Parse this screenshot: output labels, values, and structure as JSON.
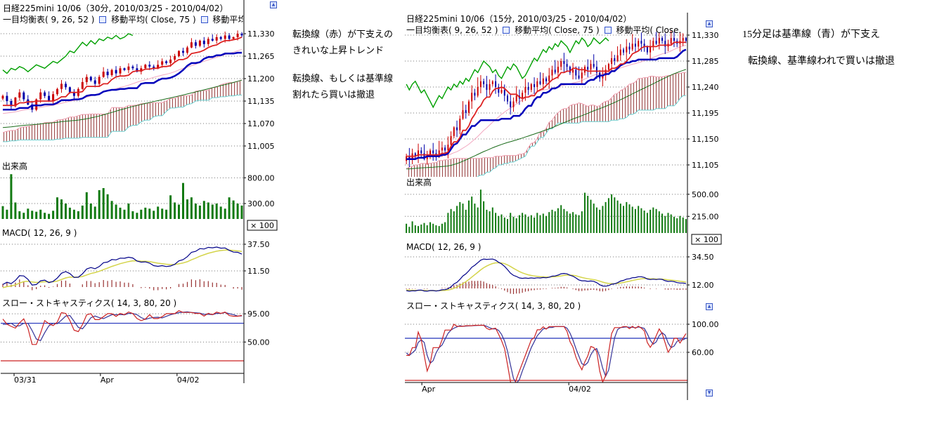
{
  "annotations": {
    "left": {
      "para1": [
        "転換線（赤）が下支えの",
        "きれいな上昇トレンド"
      ],
      "para2": [
        "転換線、もしくは基準線",
        "割れたら買いは撤退"
      ]
    },
    "right": {
      "lines": [
        "15分足は基準線（青）が下支え",
        "転換線、基準線われで買いは撤退"
      ]
    }
  },
  "colors": {
    "up": "#cc0000",
    "down": "#0000aa",
    "tenkan": "#dd2222",
    "kijun": "#0000bb",
    "lagging": "#00a000",
    "span_a": "#ee99aa",
    "span_b": "#66cccc",
    "cloud_hatch": "#994444",
    "ma_fast": "#f2a8c0",
    "ma_slow": "#1a6b1a",
    "volume": "#127a12",
    "macd": "#000088",
    "signal": "#d4d44a",
    "hist": "#993333",
    "stoch_k": "#cc2222",
    "stoch_d": "#333399",
    "ref_high": "#2233bb",
    "ref_low": "#cc2222",
    "grid": "#777777",
    "axis": "#000000",
    "icon_blue": "#3355cc"
  },
  "chart_data": [
    {
      "type": "candlestick",
      "panels": [
        "price+ichimoku+moving-averages",
        "volume",
        "macd",
        "slow-stochastics"
      ],
      "title": "日経225mini 10/06（30分, 2010/03/25 - 2010/04/02）",
      "indicators": [
        "一目均衡表( 9, 26, 52 )",
        "移動平均( Close, 75 )",
        "移動平均( Close,"
      ],
      "volume_label": "出来高",
      "volume_multiplier": "× 100",
      "macd_label": "MACD( 12, 26, 9 )",
      "stoch_label": "スロー・ストキャスティクス( 14, 3, 80, 20 )",
      "price_axis": [
        {
          "v": 11330,
          "label": "11,330"
        },
        {
          "v": 11265,
          "label": "11,265"
        },
        {
          "v": 11200,
          "label": "11,200"
        },
        {
          "v": 11135,
          "label": "11,135"
        },
        {
          "v": 11070,
          "label": "11,070"
        },
        {
          "v": 11005,
          "label": "11,005"
        }
      ],
      "vol_axis": [
        {
          "v": 800,
          "label": "800.00"
        },
        {
          "v": 300,
          "label": "300.00"
        }
      ],
      "macd_axis": [
        "37.50",
        "11.50"
      ],
      "stoch_axis": [
        {
          "v": 95,
          "label": "95.00"
        },
        {
          "v": 50,
          "label": "50.00"
        }
      ],
      "stoch_refs": {
        "high": 80,
        "low": 20
      },
      "x_labels": [
        {
          "label": "03/31",
          "pos": 0.055
        },
        {
          "label": "Apr",
          "pos": 0.41
        },
        {
          "label": "04/02",
          "pos": 0.725
        }
      ],
      "wick": 12,
      "closes": [
        11150,
        11135,
        11120,
        11145,
        11160,
        11140,
        11125,
        11110,
        11140,
        11160,
        11150,
        11135,
        11155,
        11170,
        11185,
        11175,
        11160,
        11150,
        11170,
        11190,
        11205,
        11195,
        11185,
        11205,
        11220,
        11210,
        11225,
        11215,
        11230,
        11225,
        11235,
        11230,
        11220,
        11230,
        11240,
        11235,
        11230,
        11240,
        11250,
        11245,
        11255,
        11265,
        11280,
        11275,
        11290,
        11305,
        11295,
        11310,
        11300,
        11315,
        11310,
        11320,
        11315,
        11325,
        11315,
        11320,
        11330,
        11325
      ],
      "pre_closes": [
        11060,
        11040,
        11020,
        11000,
        10980,
        10960,
        10950,
        10960,
        10945,
        10960,
        10980,
        10970,
        10990,
        11010,
        11000,
        11020,
        11035,
        11025,
        11040,
        11055,
        11045,
        11060,
        11050,
        11065,
        11075,
        11065,
        11080,
        11070,
        11085,
        11075,
        11090,
        11080,
        11095,
        11085,
        11100,
        11090,
        11080,
        11070,
        11085,
        11095,
        11085,
        11100,
        11090,
        11105,
        11095,
        11110,
        11100,
        11090,
        11105,
        11115,
        11105,
        11095,
        11110,
        11100,
        11115,
        11105
      ],
      "volumes": [
        250,
        180,
        870,
        320,
        150,
        120,
        200,
        160,
        140,
        180,
        120,
        100,
        160,
        420,
        380,
        300,
        220,
        180,
        150,
        260,
        520,
        300,
        240,
        560,
        600,
        480,
        350,
        280,
        220,
        180,
        300,
        150,
        120,
        180,
        220,
        200,
        160,
        240,
        200,
        180,
        460,
        320,
        280,
        700,
        380,
        420,
        300,
        260,
        350,
        320,
        280,
        300,
        240,
        200,
        420,
        360,
        300,
        260
      ]
    },
    {
      "type": "candlestick",
      "panels": [
        "price+ichimoku+moving-averages",
        "volume",
        "macd",
        "slow-stochastics"
      ],
      "title": "日経225mini 10/06（15分, 2010/03/25 - 2010/04/02）",
      "indicators": [
        "一目均衡表( 9, 26, 52 )",
        "移動平均( Close, 75 )",
        "移動平均( Close."
      ],
      "volume_label": "出来高",
      "volume_multiplier": "× 100",
      "macd_label": "MACD( 12, 26, 9 )",
      "stoch_label": "スロー・ストキャスティクス( 14, 3, 80, 20 )",
      "price_axis": [
        {
          "v": 11330,
          "label": "11,330"
        },
        {
          "v": 11285,
          "label": "11,285"
        },
        {
          "v": 11240,
          "label": "11,240"
        },
        {
          "v": 11195,
          "label": "11,195"
        },
        {
          "v": 11150,
          "label": "11,150"
        },
        {
          "v": 11105,
          "label": "11,105"
        }
      ],
      "vol_axis": [
        {
          "v": 500,
          "label": "500.00"
        },
        {
          "v": 215,
          "label": "215.00"
        }
      ],
      "macd_axis": [
        "34.50",
        "12.00"
      ],
      "stoch_axis": [
        {
          "v": 100,
          "label": "100.00"
        },
        {
          "v": 60,
          "label": "60.00"
        }
      ],
      "stoch_refs": {
        "high": 80,
        "low": 20
      },
      "x_labels": [
        {
          "label": "Apr",
          "pos": 0.06
        },
        {
          "label": "04/02",
          "pos": 0.58
        }
      ],
      "wick": 16,
      "closes": [
        11120,
        11115,
        11125,
        11120,
        11130,
        11125,
        11115,
        11120,
        11130,
        11125,
        11120,
        11130,
        11135,
        11130,
        11140,
        11155,
        11170,
        11165,
        11185,
        11200,
        11195,
        11215,
        11230,
        11225,
        11240,
        11250,
        11245,
        11235,
        11245,
        11250,
        11240,
        11230,
        11235,
        11225,
        11215,
        11205,
        11215,
        11225,
        11220,
        11230,
        11240,
        11235,
        11245,
        11240,
        11250,
        11245,
        11255,
        11250,
        11260,
        11270,
        11265,
        11275,
        11285,
        11280,
        11275,
        11265,
        11270,
        11260,
        11255,
        11265,
        11275,
        11270,
        11280,
        11275,
        11265,
        11255,
        11260,
        11270,
        11280,
        11290,
        11285,
        11295,
        11305,
        11300,
        11310,
        11305,
        11315,
        11310,
        11320,
        11315,
        11310,
        11300,
        11310,
        11320,
        11315,
        11325,
        11320,
        11310,
        11315,
        11325,
        11320,
        11315,
        11320,
        11325,
        11320
      ],
      "pre_closes": [
        11070,
        11060,
        11050,
        11040,
        11030,
        11040,
        11030,
        11045,
        11060,
        11050,
        11070,
        11060,
        11080,
        11070,
        11090,
        11080,
        11095,
        11085,
        11100,
        11090,
        11105,
        11095,
        11110,
        11100,
        11110,
        11105,
        11115,
        11105,
        11115,
        11110,
        11120,
        11110,
        11120,
        11115,
        11110,
        11115,
        11110,
        11120,
        11115,
        11120,
        11115,
        11105,
        11115,
        11120,
        11115,
        11125,
        11115,
        11110,
        11115,
        11125,
        11115,
        11110,
        11120,
        11115,
        11120,
        11115,
        11125,
        11120,
        11115,
        11120
      ],
      "volumes": [
        120,
        80,
        150,
        100,
        90,
        110,
        130,
        100,
        140,
        120,
        100,
        90,
        120,
        140,
        260,
        310,
        280,
        350,
        400,
        380,
        300,
        420,
        470,
        380,
        330,
        560,
        410,
        300,
        280,
        330,
        260,
        220,
        240,
        200,
        180,
        260,
        210,
        190,
        230,
        260,
        240,
        210,
        230,
        200,
        260,
        230,
        250,
        220,
        270,
        300,
        280,
        320,
        360,
        310,
        280,
        250,
        270,
        240,
        230,
        280,
        520,
        480,
        430,
        380,
        330,
        300,
        350,
        400,
        450,
        500,
        460,
        420,
        380,
        350,
        400,
        370,
        340,
        310,
        350,
        320,
        290,
        260,
        300,
        330,
        310,
        280,
        250,
        220,
        260,
        240,
        210,
        190,
        220,
        200,
        180
      ]
    }
  ]
}
